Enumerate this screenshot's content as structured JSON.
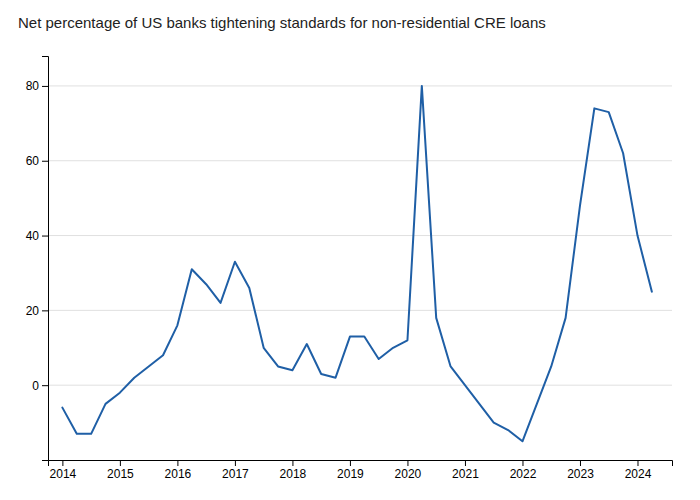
{
  "chart_data": {
    "type": "line",
    "title": "Net percentage of US banks tightening standards for non-residential CRE loans",
    "x": [
      2014.0,
      2014.25,
      2014.5,
      2014.75,
      2015.0,
      2015.25,
      2015.5,
      2015.75,
      2016.0,
      2016.25,
      2016.5,
      2016.75,
      2017.0,
      2017.25,
      2017.5,
      2017.75,
      2018.0,
      2018.25,
      2018.5,
      2018.75,
      2019.0,
      2019.25,
      2019.5,
      2019.75,
      2020.0,
      2020.25,
      2020.5,
      2020.75,
      2021.0,
      2021.25,
      2021.5,
      2021.75,
      2022.0,
      2022.25,
      2022.5,
      2022.75,
      2023.0,
      2023.25,
      2023.5,
      2023.75,
      2024.0,
      2024.25
    ],
    "values": [
      -6,
      -13,
      -13,
      -5,
      -2,
      2,
      5,
      8,
      16,
      31,
      27,
      22,
      33,
      26,
      10,
      5,
      4,
      11,
      3,
      2,
      13,
      13,
      7,
      10,
      12,
      80,
      18,
      5,
      0,
      -5,
      -10,
      -12,
      -15,
      -5,
      5,
      18,
      48,
      74,
      73,
      62,
      40,
      25
    ],
    "color": "#1f5fa6",
    "xlim": [
      2013.75,
      2024.6
    ],
    "xticks": [
      2014,
      2015,
      2016,
      2017,
      2018,
      2019,
      2020,
      2021,
      2022,
      2023,
      2024
    ],
    "ylim": [
      -20,
      88
    ],
    "yticks": [
      0,
      20,
      40,
      60,
      80
    ],
    "grid": true
  }
}
